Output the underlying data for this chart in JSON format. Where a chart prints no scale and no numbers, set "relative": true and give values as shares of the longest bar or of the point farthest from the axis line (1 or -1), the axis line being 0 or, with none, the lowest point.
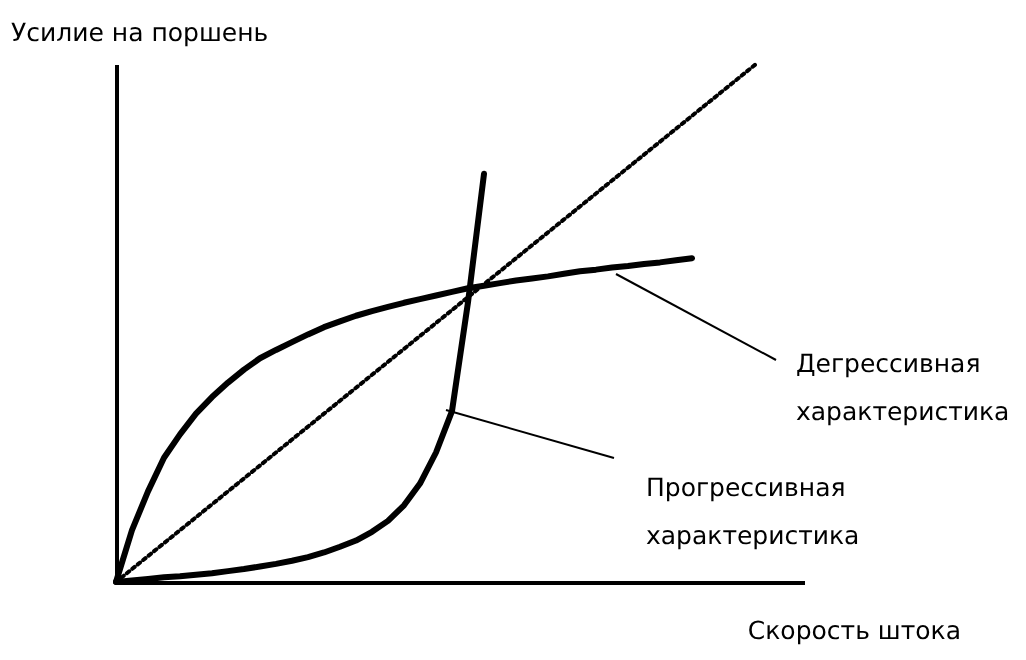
{
  "chart_data": {
    "type": "line",
    "relative": true,
    "xlabel": "Скорость штока",
    "ylabel": "Усилие на поршень",
    "categories": [
      null,
      null,
      null,
      null,
      null,
      null,
      null,
      null,
      null,
      null,
      null,
      null,
      null,
      null,
      null,
      null,
      null,
      null,
      null,
      null,
      null,
      null,
      null,
      null,
      null,
      null,
      null,
      null,
      null,
      null,
      null,
      null,
      null,
      null,
      null,
      null,
      null,
      null,
      null,
      null,
      null,
      null,
      null,
      null
    ],
    "series": [
      {
        "color": "#000000",
        "line_style": "solid",
        "values": [
          0,
          0.1,
          0.175,
          0.24,
          0.285,
          0.325,
          0.357,
          0.385,
          0.41,
          0.432,
          0.448,
          0.463,
          0.478,
          0.492,
          0.503,
          0.514,
          0.523,
          0.531,
          0.539,
          0.546,
          0.553,
          0.56,
          0.567,
          0.572,
          0.577,
          0.582,
          0.586,
          0.59,
          0.595,
          0.6,
          0.603,
          0.607,
          0.61,
          0.614,
          0.617,
          0.621,
          0.625,
          null,
          null,
          null,
          null,
          null,
          null,
          null
        ]
      },
      {
        "color": "#000000",
        "line_style": "solid",
        "values": [
          0,
          0.003,
          0.006,
          0.009,
          0.011,
          0.014,
          0.017,
          0.021,
          0.025,
          0.03,
          0.035,
          0.041,
          0.048,
          0.057,
          0.068,
          0.08,
          0.097,
          0.118,
          0.148,
          0.19,
          0.25,
          0.33,
          0.54,
          0.788,
          null,
          null,
          null,
          null,
          null,
          null,
          null,
          null,
          null,
          null,
          null,
          null,
          null,
          null,
          null,
          null,
          null,
          null,
          null,
          null
        ]
      },
      {
        "color": "#000000",
        "line_style": "dotted",
        "values": [
          0,
          0.025,
          0.05,
          0.075,
          0.1,
          0.125,
          0.15,
          0.175,
          0.2,
          0.225,
          0.25,
          0.275,
          0.3,
          0.325,
          0.35,
          0.375,
          0.4,
          0.425,
          0.45,
          0.475,
          0.5,
          0.525,
          0.55,
          0.575,
          0.6,
          0.625,
          0.65,
          0.675,
          0.7,
          0.725,
          0.75,
          0.775,
          0.8,
          0.825,
          0.85,
          0.875,
          0.9,
          0.925,
          0.95,
          0.975,
          1,
          null,
          null,
          null
        ]
      }
    ],
    "annotations": [
      "Дегрессивная характеристика",
      "Прогрессивная характеристика"
    ]
  }
}
